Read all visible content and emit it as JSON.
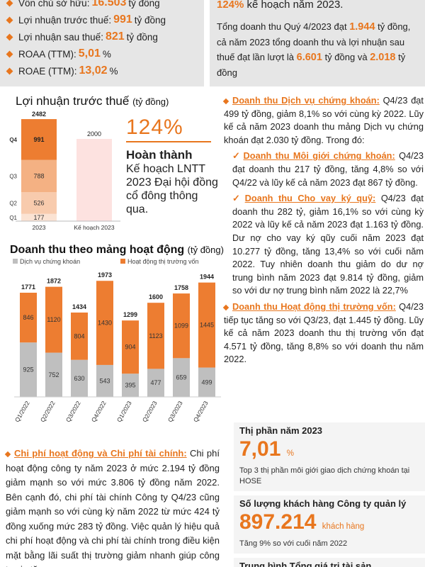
{
  "kpi_box": {
    "items": [
      {
        "label": "Vốn chủ sở hữu:",
        "value": "16.503",
        "suffix": "tỷ đồng"
      },
      {
        "label": "Lợi nhuận trước thuế:",
        "value": "991",
        "suffix": "tỷ đồng"
      },
      {
        "label": "Lợi nhuận sau thuế:",
        "value": "821",
        "suffix": "tỷ đồng"
      },
      {
        "label": "ROAA (TTM):",
        "value": "5,01",
        "suffix": "%"
      },
      {
        "label": "ROAE (TTM):",
        "value": "13,02",
        "suffix": "%"
      }
    ]
  },
  "right_top": {
    "line1_value": "124%",
    "line1_text": "kế hoạch năm 2023.",
    "p_a": "Tổng doanh thu Quý 4/2023 đạt",
    "p_v1": "1.944",
    "p_b": "tỷ đồng, cả năm 2023 tổng doanh thu và lợi nhuận sau thuế đạt lần lượt là",
    "p_v2": "6.601",
    "p_c": "tỷ đồng và",
    "p_v3": "2.018",
    "p_d": "tỷ đồng"
  },
  "profit_chart": {
    "title": "Lợi nhuận trước thuế",
    "unit": "(tỷ đồng)",
    "complete_pct": "124%",
    "complete_head": "Hoàn thành",
    "complete_text": "Kế hoạch LNTT 2023 Đại hội đồng cổ đông thông qua."
  },
  "segment_chart": {
    "title": "Doanh thu theo mảng hoạt động",
    "unit": "(tỷ đồng)"
  },
  "chart_data": [
    {
      "type": "bar",
      "title": "Lợi nhuận trước thuế (tỷ đồng)",
      "categories": [
        "2023",
        "Kế hoạch 2023"
      ],
      "stack_labels": [
        "Q1",
        "Q2",
        "Q3",
        "Q4"
      ],
      "stacked_2023": [
        177,
        526,
        788,
        991
      ],
      "totals": [
        2482,
        2000
      ],
      "colors": {
        "q1": "#fbe3d3",
        "q2": "#f8cbad",
        "q3": "#f4b183",
        "q4": "#ed7d31",
        "plan": "#fde2e0"
      }
    },
    {
      "type": "bar",
      "title": "Doanh thu theo mảng hoạt động (tỷ đồng)",
      "categories": [
        "Q1/2022",
        "Q2/2022",
        "Q3/2022",
        "Q4/2022",
        "Q1/2023",
        "Q2/2023",
        "Q3/2023",
        "Q4/2023"
      ],
      "series": [
        {
          "name": "Dịch vụ chứng khoán",
          "values": [
            925,
            752,
            630,
            543,
            395,
            477,
            659,
            499
          ],
          "color": "#bfbfbf"
        },
        {
          "name": "Hoạt động thị trường vốn",
          "values": [
            846,
            1120,
            804,
            1430,
            904,
            1123,
            1099,
            1445
          ],
          "color": "#ed7d31"
        }
      ],
      "totals": [
        1771,
        1872,
        1434,
        1973,
        1299,
        1600,
        1758,
        1944
      ],
      "legend": "top-left"
    }
  ],
  "cost_section": {
    "heading": "Chi phí hoạt động và Chi phí tài chính:",
    "body": "Chi phí hoạt động công ty năm 2023 ở mức 2.194 tỷ đồng giảm mạnh so với mức 3.806 tỷ đồng năm 2022. Bên cạnh đó, chi phí tài chính Công ty Q4/23 cũng giảm mạnh so với cùng kỳ năm 2022 từ mức 424 tỷ đồng xuống mức 283 tỷ đồng. Việc quản lý hiệu quả chi phí hoạt động và chi phí tài chính trong điều kiện mặt bằng lãi suất thị trường giảm nhanh giúp công ty gia tăng"
  },
  "right_col": {
    "s1_head": "Doanh thu Dịch vụ chứng khoán:",
    "s1_body": "Q4/23 đạt 499 tỷ đồng, giảm 8,1% so với cùng kỳ 2022. Lũy kế cả năm 2023 doanh thu mảng Dịch vụ chứng khoán đạt 2.030 tỷ đồng. Trong đó:",
    "s2_head": "Doanh thu Môi giới chứng khoán:",
    "s2_body": "Q4/23 đạt doanh thu 217 tỷ đồng, tăng 4,8% so với Q4/22 và lũy kế cả năm 2023 đạt 867 tỷ đồng.",
    "s3_head": "Doanh thu Cho vay ký quỹ:",
    "s3_body": "Q4/23 đạt doanh thu 282 tỷ, giảm 16,1% so với cùng kỳ 2022 và lũy kế cả năm 2023 đạt 1.163 tỷ đồng. Dư nợ cho vay ký qũy cuối năm 2023 đạt 10.277 tỷ đồng, tăng 13,4% so với cuối năm 2022. Tuy nhiên doanh thu giảm do dư nợ trung bình năm 2023 đạt 9.814 tỷ đồng, giảm so với dư nợ trung bình năm 2022 là 22,7%",
    "s4_head": "Doanh thu Hoạt động thị trường vốn:",
    "s4_body": "Q4/23 tiếp tục tăng so với Q3/23, đạt 1.445 tỷ đồng. Lũy kế cả năm 2023 doanh thu thị trường vốn đạt 4.571 tỷ đồng, tăng 8,8% so với doanh thu năm 2022."
  },
  "stats": {
    "share_title": "Thị phần năm 2023",
    "share_value": "7,01",
    "share_suffix": "%",
    "share_note": "Top 3 thị phần môi giới giao dịch chứng khoán tại HOSE",
    "cust_title": "Số lượng khách hàng Công ty quản lý",
    "cust_value": "897.214",
    "cust_suffix": "khách hàng",
    "cust_note": "Tăng 9% so với cuối năm 2022",
    "asset_title": "Trung bình Tổng giá trị tài sản"
  }
}
